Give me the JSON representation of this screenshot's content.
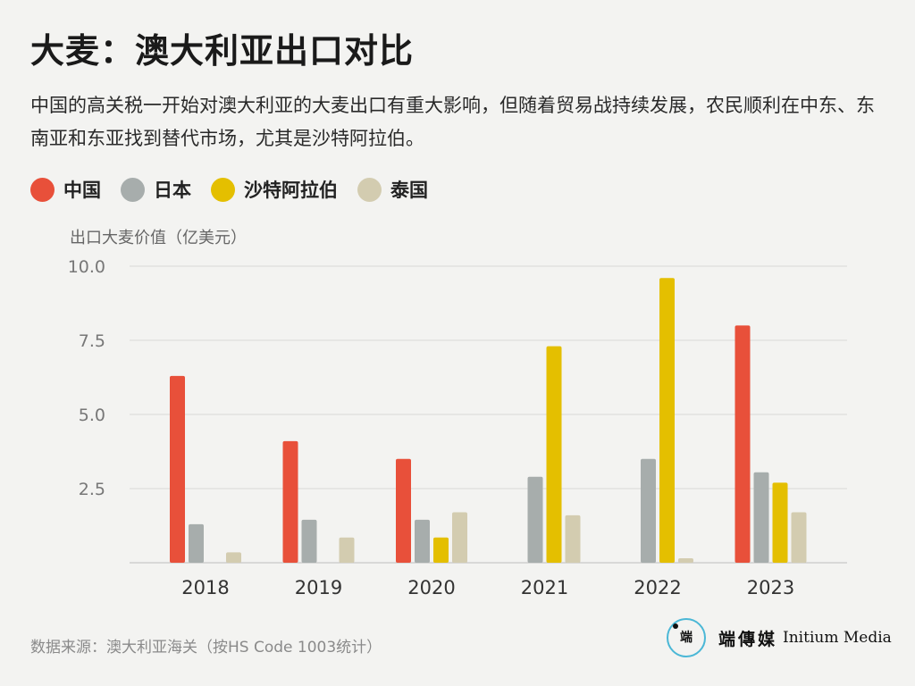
{
  "title": "大麦：澳大利亚出口对比",
  "subtitle": "中国的高关税一开始对澳大利亚的大麦出口有重大影响，但随着贸易战持续发展，农民顺利在中东、东南亚和东亚找到替代市场，尤其是沙特阿拉伯。",
  "legend": [
    {
      "label": "中国",
      "color": "#e8503a"
    },
    {
      "label": "日本",
      "color": "#a7adac"
    },
    {
      "label": "沙特阿拉伯",
      "color": "#e4bf00"
    },
    {
      "label": "泰国",
      "color": "#d3ccb0"
    }
  ],
  "source": "数据来源：澳大利亚海关（按HS Code 1003统计）",
  "logo": {
    "chinese": "端傳媒",
    "english": "Initium Media",
    "glyph": "端"
  },
  "chart_data": {
    "type": "bar",
    "ylabel": "出口大麦价值（亿美元）",
    "ylim": [
      0,
      10
    ],
    "yticks": [
      "10.0",
      "7.5",
      "5.0",
      "2.5"
    ],
    "ytick_values": [
      10,
      7.5,
      5,
      2.5
    ],
    "categories": [
      "2018",
      "2019",
      "2020",
      "2021",
      "2022",
      "2023"
    ],
    "series": [
      {
        "name": "中国",
        "color": "#e8503a",
        "values": [
          6.3,
          4.1,
          3.5,
          0,
          0,
          8.0
        ]
      },
      {
        "name": "日本",
        "color": "#a7adac",
        "values": [
          1.3,
          1.45,
          1.45,
          2.9,
          3.5,
          3.05
        ]
      },
      {
        "name": "沙特阿拉伯",
        "color": "#e4bf00",
        "values": [
          0,
          0,
          0.85,
          7.3,
          9.6,
          2.7
        ]
      },
      {
        "name": "泰国",
        "color": "#d3ccb0",
        "values": [
          0.35,
          0.85,
          1.7,
          1.6,
          0.15,
          1.7
        ]
      }
    ],
    "grid": true
  }
}
